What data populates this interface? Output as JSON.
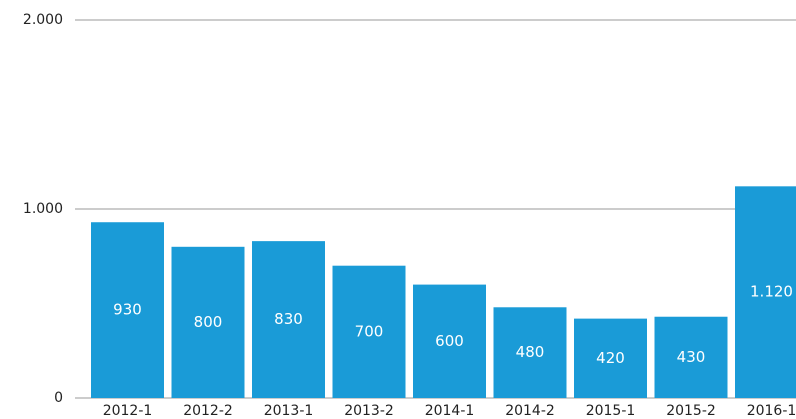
{
  "chart_data": {
    "type": "bar",
    "color": "#1a9bd7",
    "categories": [
      "2012-1",
      "2012-2",
      "2013-1",
      "2013-2",
      "2014-1",
      "2014-2",
      "2015-1",
      "2015-2",
      "2016-1"
    ],
    "values": [
      930,
      800,
      830,
      700,
      600,
      480,
      420,
      430,
      1120
    ],
    "value_labels": [
      "930",
      "800",
      "830",
      "700",
      "600",
      "480",
      "420",
      "430",
      "1.120"
    ],
    "ylim": [
      0,
      2000
    ],
    "yticks": [
      0,
      {
        "value": 1000,
        "label": "1.000"
      },
      {
        "value": 2000,
        "label": "2.000"
      }
    ],
    "grid": true
  }
}
